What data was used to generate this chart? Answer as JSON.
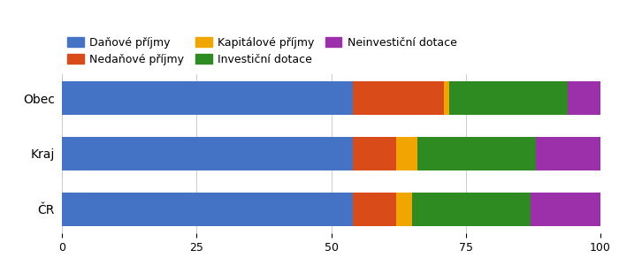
{
  "categories": [
    "Obec",
    "Kraj",
    "ČR"
  ],
  "series": [
    {
      "label": "Daňové příjmy",
      "color": "#4472C4",
      "values": [
        54,
        54,
        54
      ]
    },
    {
      "label": "Nedaňové příjmy",
      "color": "#D94C1A",
      "values": [
        17,
        8,
        8
      ]
    },
    {
      "label": "Kapitálové příjmy",
      "color": "#F0A500",
      "values": [
        1,
        4,
        3
      ]
    },
    {
      "label": "Investiční dotace",
      "color": "#2E8B22",
      "values": [
        22,
        22,
        22
      ]
    },
    {
      "label": "Neinvestiční dotace",
      "color": "#9B30AA",
      "values": [
        6,
        12,
        13
      ]
    }
  ],
  "xlim": [
    0,
    100
  ],
  "xticks": [
    0,
    25,
    50,
    75,
    100
  ],
  "background_color": "#FFFFFF",
  "bar_height": 0.6,
  "figsize": [
    7.0,
    3.0
  ],
  "dpi": 100
}
